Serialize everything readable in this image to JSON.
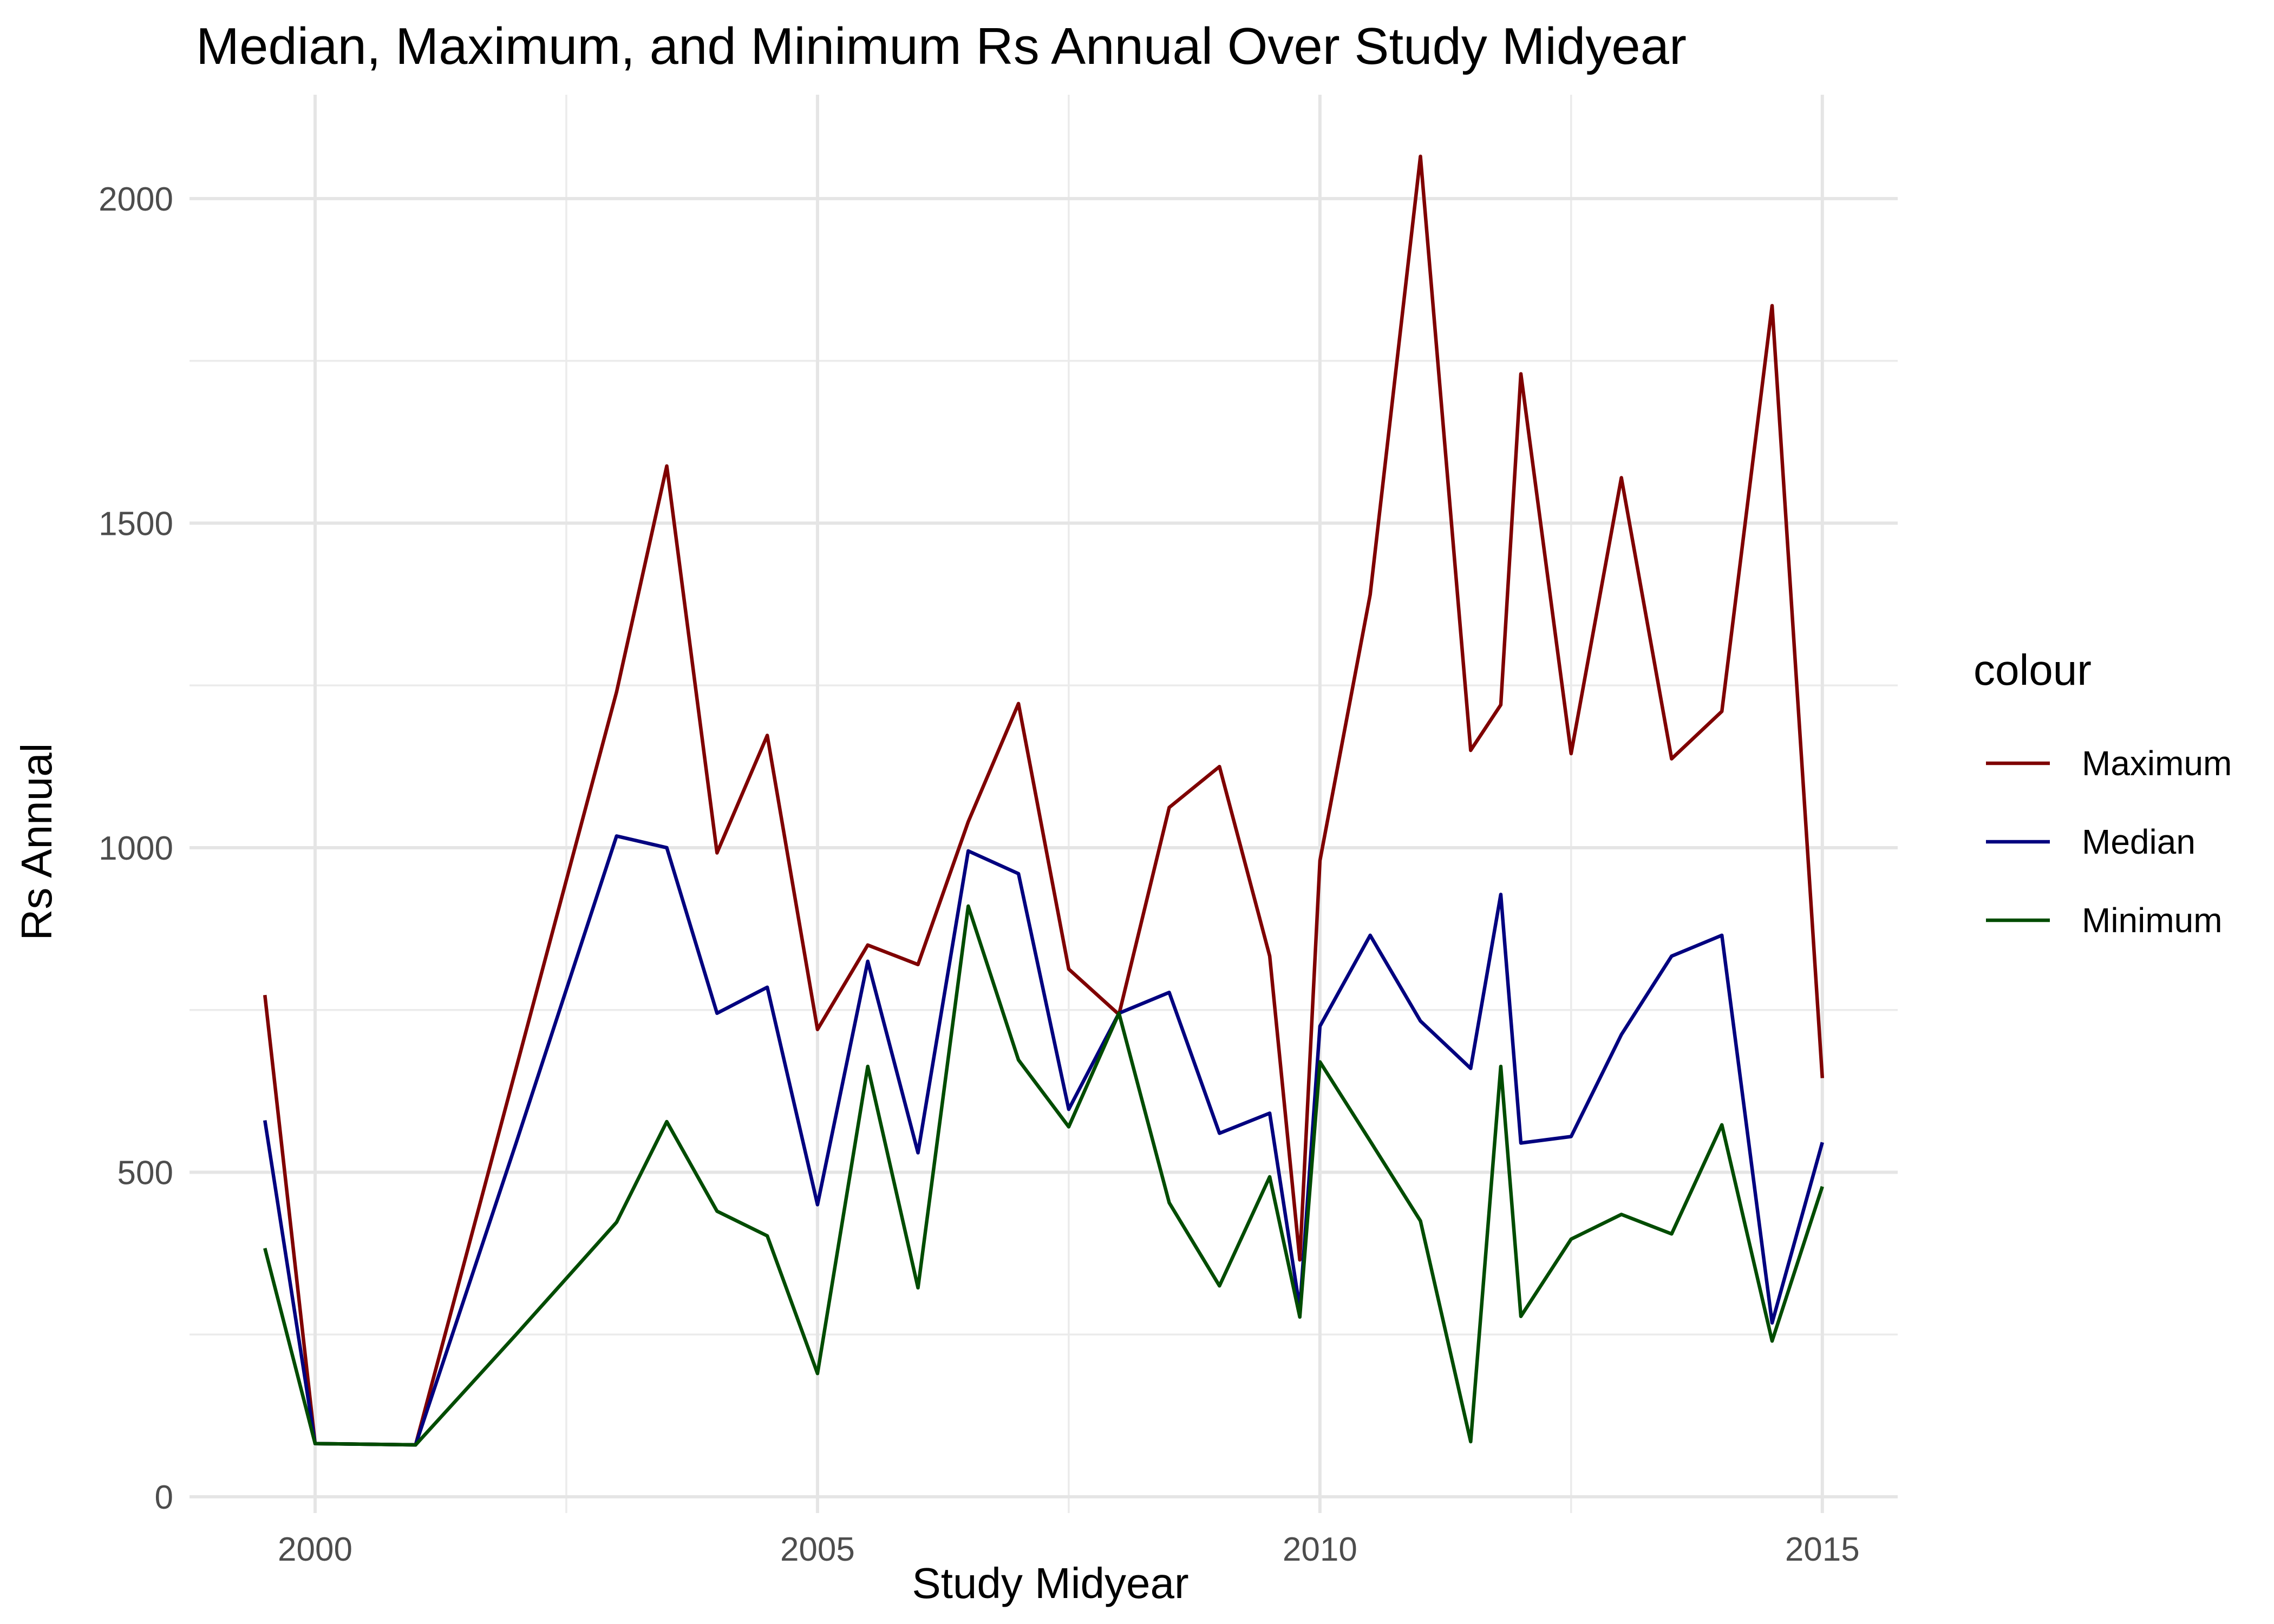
{
  "chart_data": {
    "type": "line",
    "title": "Median, Maximum, and Minimum Rs Annual Over Study Midyear",
    "xlabel": "Study Midyear",
    "ylabel": "Rs Annual",
    "xlim": [
      1998.75,
      2015.75
    ],
    "ylim": [
      -25,
      2160
    ],
    "x_ticks": [
      2000,
      2005,
      2010,
      2015
    ],
    "x_tick_labels": [
      "2000",
      "2005",
      "2010",
      "2015"
    ],
    "y_ticks": [
      0,
      500,
      1000,
      1500,
      2000
    ],
    "y_tick_labels": [
      "0",
      "500",
      "1000",
      "1500",
      "2000"
    ],
    "x_minor_ticks": [
      2002.5,
      2007.5,
      2012.5
    ],
    "y_minor_ticks": [
      250,
      750,
      1250,
      1750
    ],
    "grid": true,
    "legend": {
      "title": "colour",
      "position": "right"
    },
    "series": [
      {
        "name": "Maximum",
        "color": "#7f0000",
        "x": [
          1999.5,
          2000,
          2001,
          2002,
          2003,
          2003.5,
          2004,
          2004.5,
          2005,
          2005.5,
          2006,
          2006.5,
          2007,
          2007.5,
          2008,
          2008.5,
          2009,
          2009.5,
          2009.8,
          2010,
          2010.5,
          2011,
          2011.5,
          2011.8,
          2012,
          2012.5,
          2013,
          2013.5,
          2014,
          2014.5,
          2015
        ],
        "values": [
          773,
          82,
          80,
          660,
          1240,
          1588,
          992,
          1173,
          720,
          850,
          820,
          1040,
          1222,
          813,
          743,
          1062,
          1125,
          833,
          365,
          980,
          1390,
          2065,
          1150,
          1220,
          1730,
          1145,
          1570,
          1137,
          1210,
          1835,
          645
        ]
      },
      {
        "name": "Median",
        "color": "#00007f",
        "x": [
          1999.5,
          2000,
          2001,
          2002,
          2003,
          2003.5,
          2004,
          2004.5,
          2005,
          2005.5,
          2006,
          2006.5,
          2007,
          2007.5,
          2008,
          2008.5,
          2009,
          2009.5,
          2009.8,
          2010,
          2010.5,
          2011,
          2011.5,
          2011.8,
          2012,
          2012.5,
          2013,
          2013.5,
          2014,
          2014.5,
          2015
        ],
        "values": [
          580,
          82,
          80,
          545,
          1018,
          1000,
          745,
          785,
          450,
          825,
          530,
          995,
          960,
          597,
          745,
          777,
          560,
          591,
          290,
          725,
          865,
          733,
          660,
          928,
          545,
          555,
          712,
          833,
          865,
          268,
          546
        ]
      },
      {
        "name": "Minimum",
        "color": "#004c00",
        "x": [
          1999.5,
          2000,
          2001,
          2002,
          2003,
          2003.5,
          2004,
          2004.5,
          2005,
          2005.5,
          2006,
          2006.5,
          2007,
          2007.5,
          2008,
          2008.5,
          2009,
          2009.5,
          2009.8,
          2010,
          2010.5,
          2011,
          2011.5,
          2011.8,
          2012,
          2012.5,
          2013,
          2013.5,
          2014,
          2014.5,
          2015
        ],
        "values": [
          383,
          82,
          80,
          250,
          423,
          578,
          440,
          402,
          190,
          663,
          322,
          910,
          673,
          570,
          745,
          453,
          325,
          493,
          277,
          670,
          548,
          425,
          85,
          663,
          278,
          397,
          435,
          405,
          573,
          240,
          478
        ]
      }
    ]
  }
}
